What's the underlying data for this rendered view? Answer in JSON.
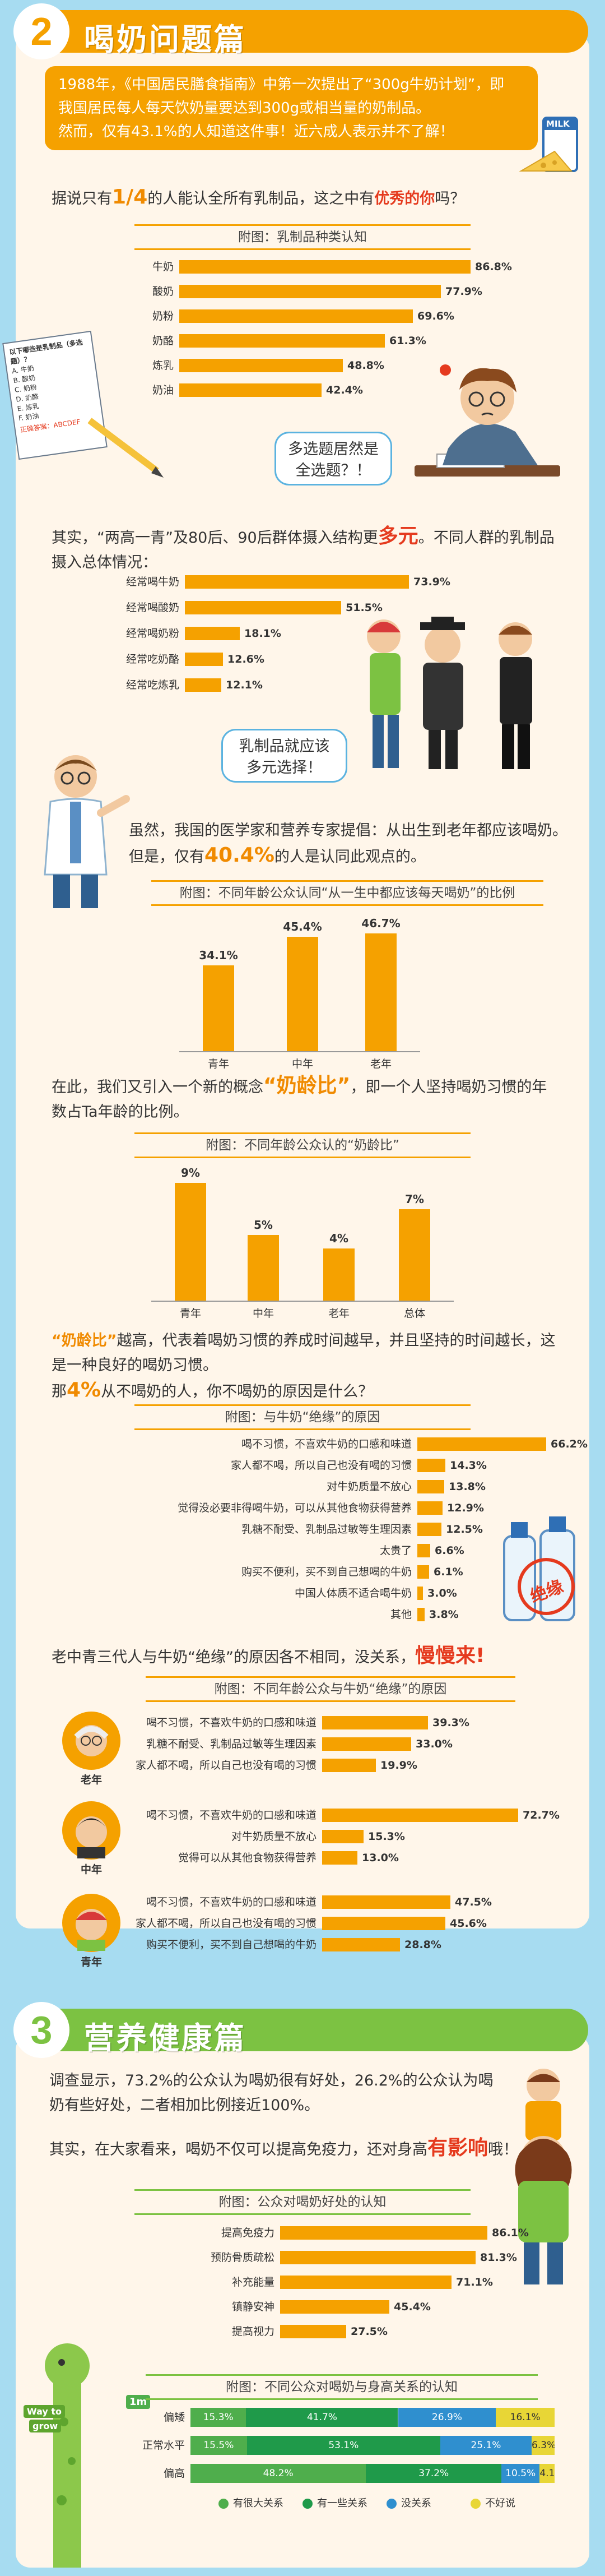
{
  "section2": {
    "number": "2",
    "title": "喝奶问题篇",
    "intro": [
      {
        "t": "1988年，《中国居民膳食指南》中第一次提出了“300g牛奶计划”，即"
      },
      {
        "t": "我国居民每人每天饮奶量要达到300g或相当量的奶制品。"
      },
      {
        "t": "然而，仅有43.1%的人知道这件事！近六成人表示并不了解！"
      }
    ],
    "milk_label": "MILK",
    "q1": {
      "pre": "据说只有",
      "frac": "1/4",
      "mid": "的人能认全所有乳制品，这之中有",
      "hl": "优秀的你",
      "post": "吗？"
    },
    "bubble1": [
      "多选题居然是",
      "全选题？！"
    ],
    "paper": {
      "title": "以下哪些是乳制品（多选题）？",
      "options": [
        "A. 牛奶",
        "B. 酸奶",
        "C. 奶粉",
        "D. 奶酪",
        "E. 炼乳",
        "F. 奶油"
      ],
      "answer_label": "正确答案：",
      "answer": "ABCDEF"
    },
    "q2": {
      "pre": "其实，“两高一青”及80后、90后群体摄入结构更",
      "hl": "多元",
      "post": "。不同人群的乳制品",
      "line2": "摄入总体情况："
    },
    "bubble2": [
      "乳制品就应该",
      "多元选择！"
    ],
    "q3": {
      "line1": "虽然，我国的医学家和营养专家提倡：从出生到老年都应该喝奶。",
      "pre": "但是，仅有",
      "hl": "40.4%",
      "post": "的人是认同此观点的。"
    },
    "q4": {
      "pre": "在此，我们又引入一个新的概念",
      "hl": "“奶龄比”",
      "post": "，即一个人坚持喝奶习惯的年",
      "line2": "数占Ta年龄的比例。"
    },
    "q5": {
      "pre": "“奶龄比”",
      "line1": "越高，代表着喝奶习惯的养成时间越早，并且坚持的时间越长，这",
      "line2": "是一种良好的喝奶习惯。",
      "l3pre": "那",
      "hl": "4%",
      "l3post": "从不喝奶的人，你不喝奶的原因是什么？"
    },
    "q6": {
      "pre": "老中青三代人与牛奶“绝缘”的原因各不相同，没关系，",
      "hl": "慢慢来!"
    },
    "stamp": "绝缘"
  },
  "section3": {
    "number": "3",
    "title": "营养健康篇",
    "intro": [
      {
        "t": "调查显示，73.2%的公众认为喝奶很有好处，26.2%的公众认为喝"
      },
      {
        "t": "奶有些好处，二者相加比例接近100%。"
      }
    ],
    "q1": {
      "pre": "其实，在大家看来，喝奶不仅可以提高免疫力，还对身高",
      "hl": "有影响",
      "post": "哦！"
    },
    "ruler": {
      "top": "Way to",
      "bottom": "grow",
      "mark": "1m"
    }
  },
  "chart_data": [
    {
      "type": "bar",
      "orientation": "horizontal",
      "title": "附图：乳制品种类认知",
      "categories": [
        "牛奶",
        "酸奶",
        "奶粉",
        "奶酪",
        "炼乳",
        "奶油"
      ],
      "values": [
        86.8,
        77.9,
        69.6,
        61.3,
        48.8,
        42.4
      ],
      "value_labels": [
        "86.8%",
        "77.9%",
        "69.6%",
        "61.3%",
        "48.8%",
        "42.4%"
      ]
    },
    {
      "type": "bar",
      "orientation": "horizontal",
      "title": "",
      "categories": [
        "经常喝牛奶",
        "经常喝酸奶",
        "经常喝奶粉",
        "经常吃奶酪",
        "经常吃炼乳"
      ],
      "values": [
        73.9,
        51.5,
        18.1,
        12.6,
        12.1
      ],
      "value_labels": [
        "73.9%",
        "51.5%",
        "18.1%",
        "12.6%",
        "12.1%"
      ]
    },
    {
      "type": "bar",
      "orientation": "vertical",
      "title": "附图：不同年龄公众认同“从一生中都应该每天喝奶”的比例",
      "categories": [
        "青年",
        "中年",
        "老年"
      ],
      "values": [
        34.1,
        45.4,
        46.7
      ],
      "value_labels": [
        "34.1%",
        "45.4%",
        "46.7%"
      ]
    },
    {
      "type": "bar",
      "orientation": "vertical",
      "title": "附图：不同年龄公众认的“奶龄比”",
      "categories": [
        "青年",
        "中年",
        "老年",
        "总体"
      ],
      "values": [
        9,
        5,
        4,
        7
      ],
      "value_labels": [
        "9%",
        "5%",
        "4%",
        "7%"
      ]
    },
    {
      "type": "bar",
      "orientation": "horizontal",
      "title": "附图：与牛奶“绝缘”的原因",
      "categories": [
        "喝不习惯，不喜欢牛奶的口感和味道",
        "家人都不喝，所以自己也没有喝的习惯",
        "对牛奶质量不放心",
        "觉得没必要非得喝牛奶，可以从其他食物获得营养",
        "乳糖不耐受、乳制品过敏等生理因素",
        "太贵了",
        "购买不便利，买不到自己想喝的牛奶",
        "中国人体质不适合喝牛奶",
        "其他"
      ],
      "values": [
        66.2,
        14.3,
        13.8,
        12.9,
        12.5,
        6.6,
        6.1,
        3.0,
        3.8
      ],
      "value_labels": [
        "66.2%",
        "14.3%",
        "13.8%",
        "12.9%",
        "12.5%",
        "6.6%",
        "6.1%",
        "3.0%",
        "3.8%"
      ]
    },
    {
      "type": "bar",
      "orientation": "horizontal",
      "title": "附图：不同年龄公众与牛奶“绝缘”的原因",
      "groups": [
        {
          "name": "老年",
          "categories": [
            "喝不习惯，不喜欢牛奶的口感和味道",
            "乳糖不耐受、乳制品过敏等生理因素",
            "家人都不喝，所以自己也没有喝的习惯"
          ],
          "values": [
            39.3,
            33.0,
            19.9
          ],
          "value_labels": [
            "39.3%",
            "33.0%",
            "19.9%"
          ]
        },
        {
          "name": "中年",
          "categories": [
            "喝不习惯，不喜欢牛奶的口感和味道",
            "对牛奶质量不放心",
            "觉得可以从其他食物获得营养"
          ],
          "values": [
            72.7,
            15.3,
            13.0
          ],
          "value_labels": [
            "72.7%",
            "15.3%",
            "13.0%"
          ]
        },
        {
          "name": "青年",
          "categories": [
            "喝不习惯，不喜欢牛奶的口感和味道",
            "家人都不喝，所以自己也没有喝的习惯",
            "购买不便利，买不到自己想喝的牛奶"
          ],
          "values": [
            47.5,
            45.6,
            28.8
          ],
          "value_labels": [
            "47.5%",
            "45.6%",
            "28.8%"
          ]
        }
      ]
    },
    {
      "type": "bar",
      "orientation": "horizontal",
      "title": "附图：公众对喝奶好处的认知",
      "categories": [
        "提高免疫力",
        "预防骨质疏松",
        "补充能量",
        "镇静安神",
        "提高视力"
      ],
      "values": [
        86.1,
        81.3,
        71.1,
        45.4,
        27.5
      ],
      "value_labels": [
        "86.1%",
        "81.3%",
        "71.1%",
        "45.4%",
        "27.5%"
      ]
    },
    {
      "type": "bar",
      "orientation": "horizontal",
      "stacked": true,
      "title": "附图：不同公众对喝奶与身高关系的认知",
      "categories": [
        "偏矮",
        "正常水平",
        "偏高"
      ],
      "series": [
        {
          "name": "有很大关系",
          "values": [
            15.3,
            15.5,
            48.2
          ],
          "color": "#4fae4c"
        },
        {
          "name": "有一些关系",
          "values": [
            41.7,
            53.1,
            37.2
          ],
          "color": "#1f9a4a"
        },
        {
          "name": "没关系",
          "values": [
            26.9,
            25.1,
            10.5
          ],
          "color": "#2f8fcf"
        },
        {
          "name": "不好说",
          "values": [
            16.1,
            6.3,
            4.1
          ],
          "color": "#e8d636"
        }
      ],
      "value_labels": [
        [
          "15.3%",
          "41.7%",
          "26.9%",
          "16.1%"
        ],
        [
          "15.5%",
          "53.1%",
          "25.1%",
          "6.3%"
        ],
        [
          "48.2%",
          "37.2%",
          "10.5%",
          "4.1%"
        ]
      ]
    }
  ]
}
